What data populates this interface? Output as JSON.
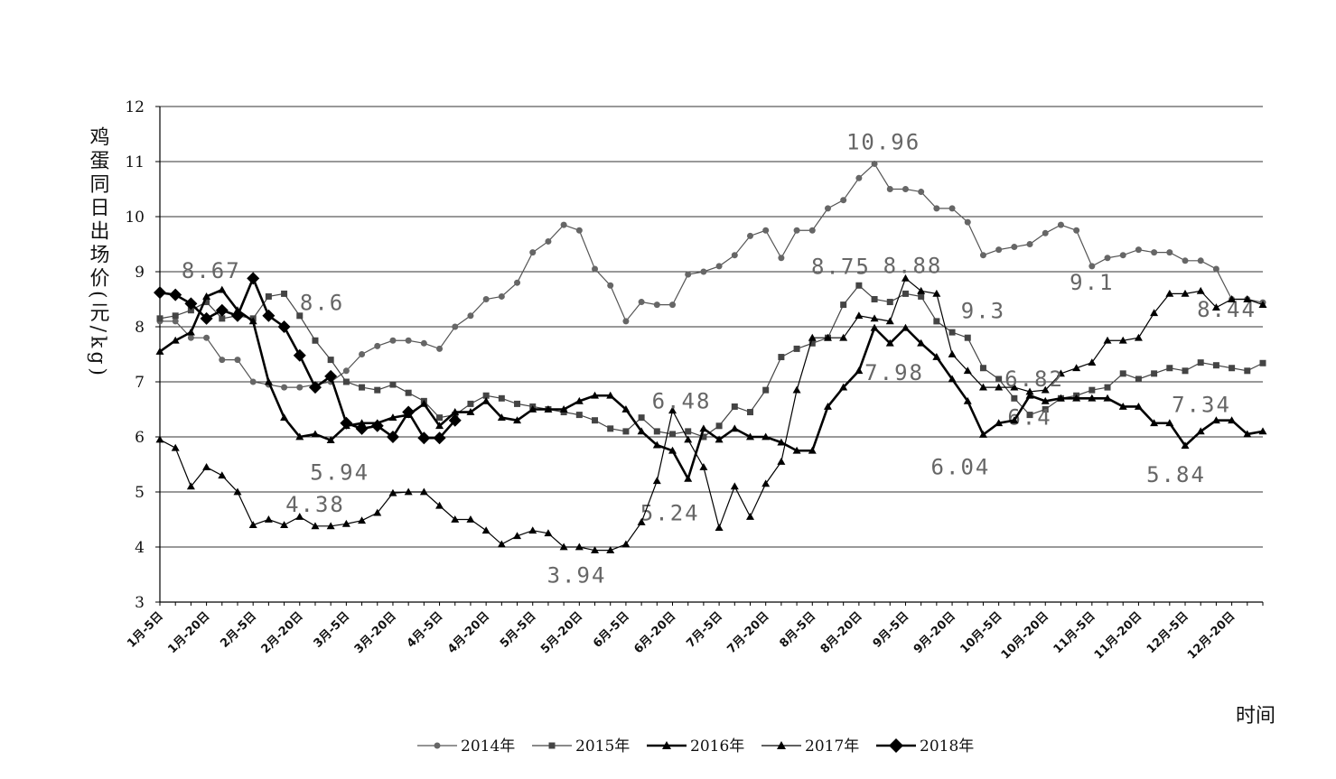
{
  "chart_data": {
    "type": "line",
    "ylabel": "鸡蛋同日出场价(元/kg)",
    "xlabel": "时间",
    "categories": [
      "1月-5日",
      null,
      null,
      "1月-20日",
      null,
      null,
      "2月-5日",
      null,
      null,
      "2月-20日",
      null,
      null,
      "3月-5日",
      null,
      null,
      "3月-20日",
      null,
      null,
      "4月-5日",
      null,
      null,
      "4月-20日",
      null,
      null,
      "5月-5日",
      null,
      null,
      "5月-20日",
      null,
      null,
      "6月-5日",
      null,
      null,
      "6月-20日",
      null,
      null,
      "7月-5日",
      null,
      null,
      "7月-20日",
      null,
      null,
      "8月-5日",
      null,
      null,
      "8月-20日",
      null,
      null,
      "9月-5日",
      null,
      null,
      "9月-20日",
      null,
      null,
      "10月-5日",
      null,
      null,
      "10月-20日",
      null,
      null,
      "11月-5日",
      null,
      null,
      "11月-20日",
      null,
      null,
      "12月-5日",
      null,
      null,
      "12月-20日",
      null,
      null
    ],
    "ylim": [
      3,
      12
    ],
    "yticks": [
      3,
      4,
      5,
      6,
      7,
      8,
      9,
      10,
      11,
      12
    ],
    "grid": true,
    "series": [
      {
        "name": "2014年",
        "color": "#555555",
        "marker": "circle",
        "values": [
          8.1,
          8.1,
          7.8,
          7.8,
          7.4,
          7.4,
          7.0,
          6.95,
          6.9,
          6.9,
          6.95,
          7.0,
          7.2,
          7.5,
          7.65,
          7.75,
          7.75,
          7.7,
          7.6,
          8.0,
          8.2,
          8.5,
          8.55,
          8.8,
          9.35,
          9.55,
          9.85,
          9.75,
          9.05,
          8.75,
          8.1,
          8.45,
          8.4,
          8.4,
          8.95,
          9.0,
          9.1,
          9.3,
          9.65,
          9.75,
          9.25,
          9.75,
          9.75,
          10.15,
          10.3,
          10.7,
          10.96,
          10.5,
          10.5,
          10.45,
          10.15,
          10.15,
          9.9,
          9.3,
          9.4,
          9.45,
          9.5,
          9.7,
          9.85,
          9.75,
          9.1,
          9.25,
          9.3,
          9.4,
          9.35,
          9.35,
          9.2,
          9.2,
          9.05,
          8.5,
          8.5,
          8.44
        ],
        "value_labels": [
          null,
          null,
          null,
          null,
          null,
          null,
          null,
          null,
          null,
          null,
          null,
          null,
          null,
          null,
          null,
          null,
          null,
          null,
          null,
          null,
          null,
          null,
          null,
          null,
          null,
          null,
          null,
          null,
          null,
          null,
          null,
          null,
          null,
          null,
          null,
          null,
          null,
          null,
          null,
          null,
          null,
          null,
          null,
          null,
          null,
          null,
          "10.96",
          null,
          null,
          null,
          null,
          null,
          null,
          "9.3",
          null,
          null,
          null,
          null,
          null,
          null,
          "9.1",
          null,
          null,
          null,
          null,
          null,
          null,
          null,
          null,
          null,
          null,
          "8.44"
        ]
      },
      {
        "name": "2015年",
        "color": "#444444",
        "marker": "square",
        "values": [
          8.15,
          8.2,
          8.3,
          8.45,
          8.15,
          8.2,
          8.15,
          8.55,
          8.6,
          8.2,
          7.75,
          7.4,
          7.0,
          6.9,
          6.85,
          6.95,
          6.8,
          6.65,
          6.35,
          6.4,
          6.6,
          6.75,
          6.7,
          6.6,
          6.55,
          6.5,
          6.45,
          6.4,
          6.3,
          6.15,
          6.1,
          6.35,
          6.1,
          6.05,
          6.1,
          6.0,
          6.2,
          6.55,
          6.45,
          6.85,
          7.45,
          7.6,
          7.7,
          7.8,
          8.4,
          8.75,
          8.5,
          8.45,
          8.6,
          8.55,
          8.1,
          7.9,
          7.8,
          7.25,
          7.05,
          6.7,
          6.4,
          6.5,
          6.7,
          6.75,
          6.85,
          6.9,
          7.15,
          7.05,
          7.15,
          7.25,
          7.2,
          7.35,
          7.3,
          7.25,
          7.2,
          7.34
        ],
        "value_labels": [
          null,
          null,
          null,
          null,
          null,
          null,
          null,
          null,
          "8.6",
          null,
          null,
          null,
          null,
          null,
          null,
          null,
          null,
          null,
          null,
          null,
          null,
          null,
          null,
          null,
          null,
          null,
          null,
          null,
          null,
          null,
          null,
          null,
          null,
          null,
          null,
          null,
          null,
          null,
          null,
          null,
          null,
          null,
          null,
          null,
          null,
          "8.75",
          null,
          null,
          null,
          null,
          null,
          null,
          null,
          null,
          null,
          null,
          "6.4",
          null,
          null,
          null,
          null,
          null,
          null,
          null,
          null,
          null,
          null,
          null,
          null,
          null,
          null,
          "7.34"
        ]
      },
      {
        "name": "2016年",
        "color": "#000000",
        "marker": "triangle",
        "bold": true,
        "values": [
          7.55,
          7.75,
          7.9,
          8.55,
          8.67,
          8.3,
          8.1,
          7.0,
          6.35,
          6.0,
          6.05,
          5.94,
          6.2,
          6.25,
          6.25,
          6.35,
          6.4,
          6.6,
          6.2,
          6.45,
          6.45,
          6.65,
          6.35,
          6.3,
          6.5,
          6.5,
          6.5,
          6.65,
          6.75,
          6.75,
          6.5,
          6.1,
          5.85,
          5.75,
          5.24,
          6.15,
          5.95,
          6.15,
          6.0,
          6.0,
          5.9,
          5.75,
          5.75,
          6.55,
          6.9,
          7.2,
          7.98,
          7.7,
          7.98,
          7.7,
          7.45,
          7.05,
          6.65,
          6.04,
          6.25,
          6.3,
          6.75,
          6.65,
          6.7,
          6.7,
          6.7,
          6.7,
          6.55,
          6.55,
          6.25,
          6.25,
          5.84,
          6.1,
          6.3,
          6.3,
          6.05,
          6.1
        ],
        "value_labels": [
          null,
          null,
          null,
          null,
          "8.67",
          null,
          null,
          null,
          null,
          null,
          null,
          "5.94",
          null,
          null,
          null,
          null,
          null,
          null,
          null,
          null,
          null,
          null,
          null,
          null,
          null,
          null,
          null,
          null,
          null,
          null,
          null,
          null,
          null,
          null,
          "5.24",
          null,
          null,
          null,
          null,
          null,
          null,
          null,
          null,
          null,
          null,
          null,
          "7.98",
          null,
          null,
          null,
          null,
          null,
          null,
          "6.04",
          null,
          null,
          null,
          null,
          null,
          null,
          null,
          null,
          null,
          null,
          null,
          null,
          "5.84",
          null,
          null,
          null,
          null,
          null
        ]
      },
      {
        "name": "2017年",
        "color": "#000000",
        "marker": "triangle",
        "values": [
          5.95,
          5.8,
          5.1,
          5.45,
          5.3,
          5.0,
          4.4,
          4.5,
          4.4,
          4.55,
          4.38,
          4.38,
          4.42,
          4.48,
          4.62,
          4.98,
          5.0,
          5.0,
          4.75,
          4.5,
          4.5,
          4.3,
          4.05,
          4.2,
          4.3,
          4.25,
          4.0,
          4.0,
          3.94,
          3.94,
          4.05,
          4.45,
          5.2,
          6.48,
          5.95,
          5.45,
          4.35,
          5.1,
          4.55,
          5.15,
          5.55,
          6.85,
          7.8,
          7.8,
          7.8,
          8.2,
          8.15,
          8.1,
          8.88,
          8.65,
          8.6,
          7.5,
          7.2,
          6.9,
          6.9,
          6.9,
          6.82,
          6.85,
          7.15,
          7.25,
          7.35,
          7.75,
          7.75,
          7.8,
          8.25,
          8.6,
          8.6,
          8.65,
          8.35,
          8.5,
          8.5,
          8.4
        ],
        "value_labels": [
          null,
          null,
          null,
          null,
          null,
          null,
          null,
          null,
          null,
          null,
          "4.38",
          null,
          null,
          null,
          null,
          null,
          null,
          null,
          null,
          null,
          null,
          null,
          null,
          null,
          null,
          null,
          null,
          null,
          "3.94",
          null,
          null,
          null,
          null,
          "6.48",
          null,
          null,
          null,
          null,
          null,
          null,
          null,
          null,
          null,
          null,
          null,
          null,
          null,
          null,
          "8.88",
          null,
          null,
          null,
          null,
          null,
          null,
          null,
          "6.82",
          null,
          null,
          null,
          null,
          null,
          null,
          null,
          null,
          null,
          null,
          null,
          null,
          null,
          null,
          null
        ]
      },
      {
        "name": "2018年",
        "color": "#000000",
        "marker": "diamond",
        "bold": true,
        "values": [
          8.62,
          8.58,
          8.42,
          8.15,
          8.3,
          8.2,
          8.88,
          8.2,
          8.0,
          7.48,
          6.9,
          7.1,
          6.25,
          6.15,
          6.2,
          6.0,
          6.45,
          5.98,
          5.98,
          6.3,
          null,
          null,
          null,
          null,
          null,
          null,
          null,
          null,
          null,
          null,
          null,
          null,
          null,
          null,
          null,
          null,
          null,
          null,
          null,
          null,
          null,
          null,
          null,
          null,
          null,
          null,
          null,
          null,
          null,
          null,
          null,
          null,
          null,
          null,
          null,
          null,
          null,
          null,
          null,
          null,
          null,
          null,
          null,
          null,
          null,
          null,
          null,
          null,
          null,
          null,
          null,
          null
        ]
      }
    ]
  }
}
